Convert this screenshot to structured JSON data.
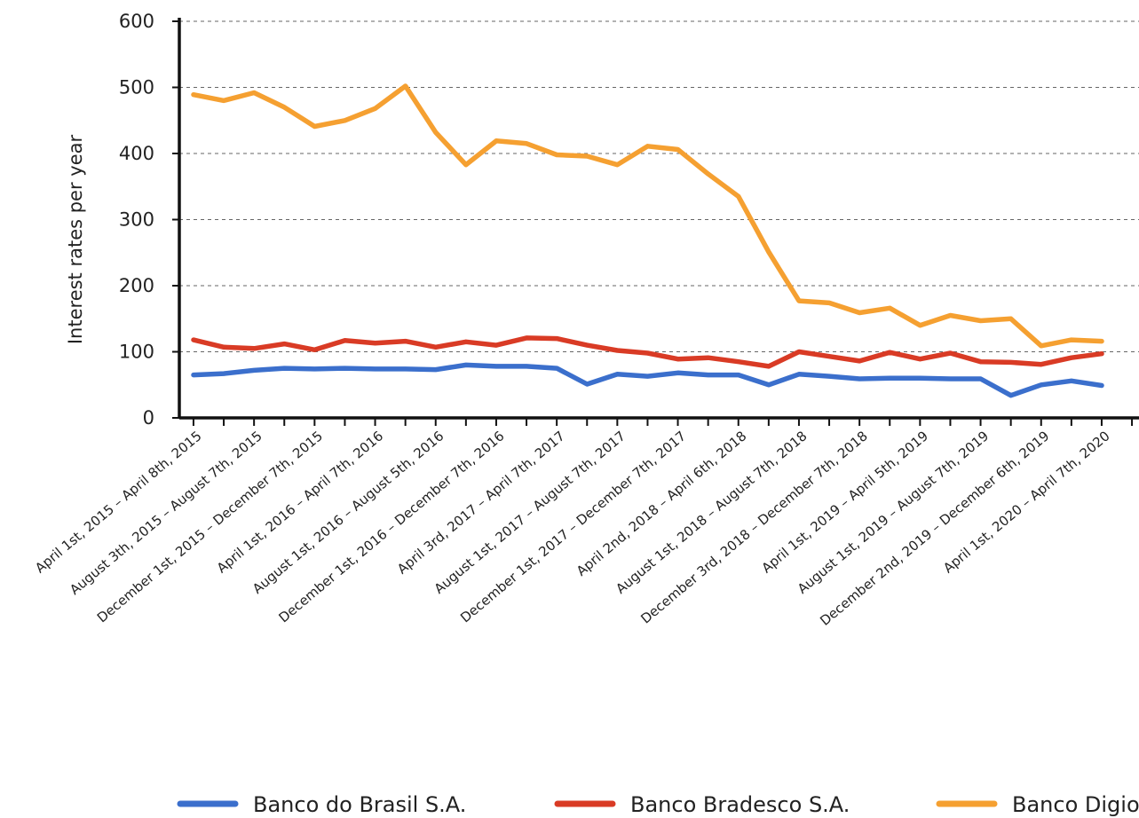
{
  "chart_data": {
    "type": "line",
    "ylabel": "Interest rates per year",
    "xlabel": "",
    "ylim": [
      0,
      600
    ],
    "yticks": [
      0,
      100,
      200,
      300,
      400,
      500,
      600
    ],
    "grid": true,
    "legend_position": "bottom",
    "x_tick_labels": [
      "April 1st, 2015 – April 8th, 2015",
      "August 3th, 2015 – August 7th, 2015",
      "December 1st, 2015 – December 7th, 2015",
      "April 1st, 2016 – April 7th, 2016",
      "August 1st, 2016 – August 5th, 2016",
      "December 1st, 2016 – December 7th, 2016",
      "April 3rd, 2017 – April 7th, 2017",
      "August 1st, 2017 – August 7th, 2017",
      "December 1st, 2017 – December 7th, 2017",
      "April 2nd, 2018 – April 6th, 2018",
      "August 1st, 2018 – August 7th, 2018",
      "December 3rd, 2018 – December 7th, 2018",
      "April 1st, 2019 – April 5th, 2019",
      "August 1st, 2019 – August 7th, 2019",
      "December 2nd, 2019 – December 6th, 2019",
      "April 1st, 2020 – April 7th, 2020"
    ],
    "series": [
      {
        "name": "Banco do Brasil S.A.",
        "color": "#3b6fcc",
        "values": [
          65,
          67,
          72,
          75,
          74,
          75,
          74,
          74,
          73,
          80,
          78,
          78,
          75,
          51,
          66,
          63,
          68,
          65,
          65,
          50,
          66,
          63,
          59,
          60,
          60,
          59,
          59,
          34,
          50,
          56,
          49
        ]
      },
      {
        "name": "Banco Bradesco S.A.",
        "color": "#d93b25",
        "values": [
          118,
          107,
          105,
          112,
          103,
          117,
          113,
          116,
          107,
          115,
          110,
          121,
          120,
          110,
          102,
          98,
          89,
          91,
          85,
          78,
          100,
          93,
          86,
          99,
          89,
          98,
          85,
          84,
          81,
          91,
          97
        ]
      },
      {
        "name": "Banco Digio",
        "color": "#f5a031",
        "values": [
          489,
          480,
          492,
          470,
          441,
          450,
          468,
          502,
          432,
          383,
          419,
          415,
          398,
          396,
          383,
          411,
          406,
          369,
          335,
          251,
          177,
          174,
          159,
          166,
          140,
          155,
          147,
          150,
          109,
          118,
          116
        ]
      }
    ]
  }
}
